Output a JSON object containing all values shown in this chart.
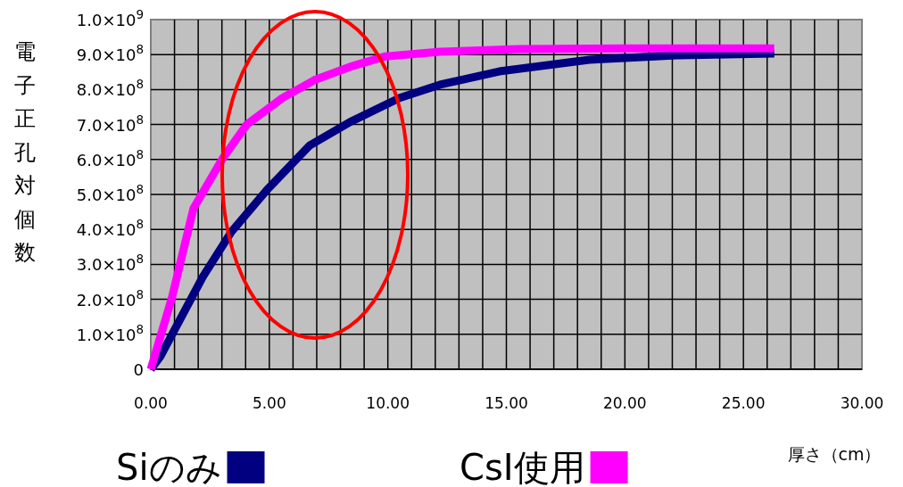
{
  "chart_data": {
    "type": "line",
    "xlabel": "厚さ（cm）",
    "ylabel": "電子正孔対個数",
    "xlim": [
      0,
      30
    ],
    "xticks": [
      {
        "value": 0,
        "label": "0.00"
      },
      {
        "value": 5,
        "label": "5.00"
      },
      {
        "value": 10,
        "label": "10.00"
      },
      {
        "value": 15,
        "label": "15.00"
      },
      {
        "value": 20,
        "label": "20.00"
      },
      {
        "value": 25,
        "label": "25.00"
      },
      {
        "value": 30,
        "label": "30.00"
      }
    ],
    "ylim": [
      0,
      1000000000
    ],
    "yticks": [
      0,
      {
        "value": 100000000,
        "label": "1.0×10$^{8}$"
      },
      {
        "value": 200000000,
        "label": "2.0×10$^{8}$"
      },
      {
        "value": 300000000,
        "label": "3.0×10$^{8}$"
      },
      {
        "value": 400000000,
        "label": "4.0×10$^{8}$"
      },
      {
        "value": 500000000,
        "label": "5.0×10$^{8}$"
      },
      {
        "value": 600000000,
        "label": "6.0×10$^{8}$"
      },
      {
        "value": 700000000,
        "label": "7.0×10$^{8}$"
      },
      {
        "value": 800000000,
        "label": "8.0×10$^{8}$"
      },
      {
        "value": 900000000,
        "label": "9.0×10$^{8}$"
      },
      {
        "value": 1000000000,
        "label": "1.0×10$^{9}$"
      }
    ],
    "grid": true,
    "legend": "bottom",
    "marker": "none",
    "line_style": "solid",
    "series": [
      {
        "name": "Siのみ",
        "color": "#000080",
        "x": [
          0,
          0.4,
          1.2,
          2.2,
          3.4,
          4.9,
          6.7,
          8.4,
          10.5,
          12.2,
          14.7,
          18.5,
          22.2,
          26.3
        ],
        "values": [
          0,
          36000000,
          138000000,
          265000000,
          393000000,
          513000000,
          640000000,
          707000000,
          776000000,
          814000000,
          852000000,
          885000000,
          898000000,
          903000000
        ]
      },
      {
        "name": "CsI使用",
        "color": "#ff00ff",
        "x": [
          0,
          0.9,
          1.8,
          3.05,
          4.05,
          5.55,
          6.9,
          8.4,
          9.9,
          12.2,
          15.5,
          20,
          26.3
        ],
        "values": [
          0,
          207000000,
          460000000,
          605000000,
          700000000,
          776000000,
          827000000,
          865000000,
          895000000,
          908000000,
          916000000,
          918000000,
          918000000
        ]
      }
    ]
  }
}
